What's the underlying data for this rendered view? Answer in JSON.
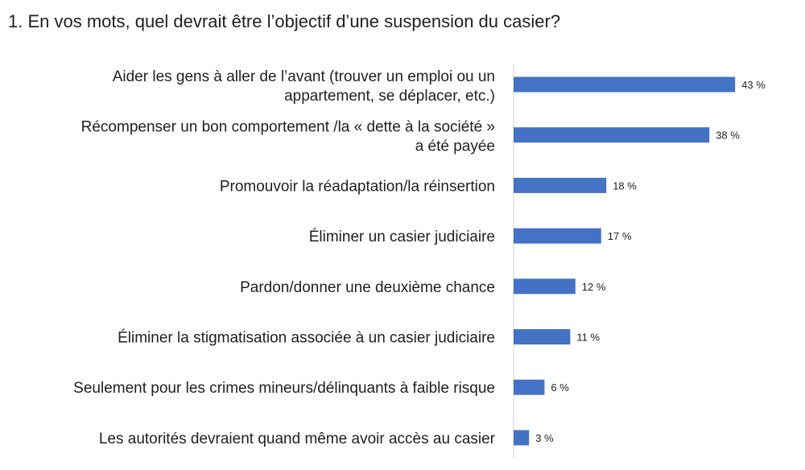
{
  "chart_data": {
    "type": "bar",
    "orientation": "horizontal",
    "title": "1.  En vos mots, quel devrait être l’objectif d’une suspension du casier?",
    "categories": [
      [
        "Aider les gens à aller de l’avant (trouver un emploi ou un",
        "appartement, se déplacer, etc.)"
      ],
      [
        "Récompenser un bon comportement /la « dette à la société »",
        "a été payée"
      ],
      [
        "Promouvoir la réadaptation/la réinsertion"
      ],
      [
        "Éliminer un casier judiciaire"
      ],
      [
        "Pardon/donner une deuxième chance"
      ],
      [
        "Éliminer la stigmatisation associée à un casier judiciaire"
      ],
      [
        "Seulement pour les crimes mineurs/délinquants à faible risque"
      ],
      [
        "Les autorités devraient quand même avoir accès au casier"
      ]
    ],
    "values": [
      43,
      38,
      18,
      17,
      12,
      11,
      6,
      3
    ],
    "value_labels": [
      "43 %",
      "38 %",
      "18 %",
      "17 %",
      "12 %",
      "11 %",
      "6 %",
      "3 %"
    ],
    "xlim": [
      0,
      50
    ],
    "bar_color": "#4472C4",
    "axis_color": "#d0d0d0",
    "grid": false,
    "legend": "none"
  }
}
